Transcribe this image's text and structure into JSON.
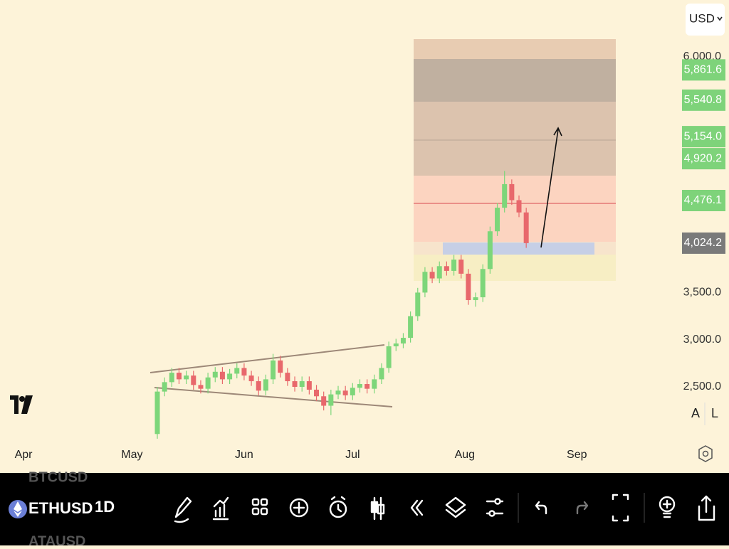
{
  "chart_data": {
    "type": "candlestick",
    "x": [
      37,
      39,
      41,
      43,
      45,
      47,
      49,
      51,
      53,
      55,
      57,
      59,
      61,
      63,
      65,
      67,
      69,
      71,
      73,
      75,
      77,
      79,
      81,
      83,
      85,
      87,
      89,
      91,
      93,
      95,
      97,
      99,
      101,
      103,
      105,
      107,
      109,
      111,
      113,
      115,
      117,
      119,
      121,
      123,
      125,
      127,
      129,
      131,
      133,
      135,
      137,
      139
    ],
    "open": [
      2000,
      2450,
      2550,
      2650,
      2580,
      2620,
      2520,
      2480,
      2600,
      2660,
      2580,
      2640,
      2700,
      2620,
      2560,
      2460,
      2580,
      2780,
      2650,
      2560,
      2500,
      2560,
      2470,
      2400,
      2300,
      2420,
      2460,
      2410,
      2490,
      2530,
      2480,
      2580,
      2700,
      2930,
      2960,
      3020,
      3250,
      3500,
      3720,
      3650,
      3780,
      3730,
      3850,
      3700,
      3420,
      3450,
      3750,
      4150,
      4400,
      4650,
      4480,
      4350
    ],
    "high": [
      2500,
      2600,
      2700,
      2700,
      2670,
      2670,
      2570,
      2650,
      2710,
      2710,
      2690,
      2750,
      2750,
      2670,
      2610,
      2630,
      2850,
      2830,
      2700,
      2610,
      2610,
      2610,
      2520,
      2450,
      2470,
      2510,
      2510,
      2540,
      2580,
      2580,
      2630,
      2750,
      2980,
      3010,
      3070,
      3300,
      3550,
      3770,
      3770,
      3830,
      3830,
      3900,
      3900,
      3750,
      3500,
      3800,
      4200,
      4450,
      4790,
      4700,
      4530,
      4400
    ],
    "low": [
      1950,
      2400,
      2500,
      2530,
      2530,
      2470,
      2430,
      2430,
      2550,
      2530,
      2530,
      2590,
      2570,
      2510,
      2410,
      2410,
      2530,
      2600,
      2510,
      2450,
      2450,
      2420,
      2350,
      2250,
      2200,
      2370,
      2360,
      2360,
      2440,
      2430,
      2430,
      2530,
      2650,
      2880,
      2910,
      2970,
      3200,
      3450,
      3600,
      3600,
      3680,
      3680,
      3650,
      3370,
      3350,
      3400,
      3700,
      4100,
      4350,
      4430,
      4300,
      3974
    ],
    "close": [
      2450,
      2550,
      2650,
      2580,
      2620,
      2520,
      2480,
      2600,
      2660,
      2580,
      2640,
      2700,
      2620,
      2560,
      2460,
      2580,
      2780,
      2650,
      2560,
      2500,
      2560,
      2470,
      2400,
      2300,
      2420,
      2460,
      2410,
      2490,
      2530,
      2480,
      2580,
      2700,
      2930,
      2960,
      3020,
      3250,
      3500,
      3720,
      3650,
      3780,
      3730,
      3850,
      3700,
      3420,
      3450,
      3750,
      4150,
      4400,
      4650,
      4480,
      4350,
      4024.2
    ],
    "up_color": "#7dd67a",
    "down_color": "#e8686c",
    "xlim": [
      -6.5,
      180.5
    ],
    "ylim": [
      1610,
      6603
    ],
    "xticks": [
      {
        "value": 0,
        "label": "Apr"
      },
      {
        "value": 30,
        "label": "May"
      },
      {
        "value": 61,
        "label": "Jun"
      },
      {
        "value": 91,
        "label": "Jul"
      },
      {
        "value": 122,
        "label": "Aug"
      },
      {
        "value": 153,
        "label": "Sep"
      }
    ],
    "yticks": [
      {
        "value": 2500,
        "label": "2,500.0"
      },
      {
        "value": 3000,
        "label": "3,000.0"
      },
      {
        "value": 3500,
        "label": "3,500.0"
      },
      {
        "value": 6000,
        "label": "6,000.0"
      }
    ],
    "price_levels": {
      "values": [
        5861.6,
        5540.8,
        5154.0,
        4920.2,
        4476.1
      ],
      "value_labels": [
        "5,861.6",
        "5,540.8",
        "5,154.0",
        "4,920.2",
        "4,476.1"
      ],
      "color": "#7ed37a"
    },
    "last_price": {
      "value": 4024.2,
      "label": "4,024.2",
      "color": "#7a7a7a"
    }
  },
  "ui": {
    "currency": "USD",
    "axis_buttons": [
      "A",
      "L"
    ],
    "symbol": "ETHUSD",
    "interval": "1D",
    "symbol_list": [
      "BTCUSD",
      "ATAUSD"
    ]
  }
}
